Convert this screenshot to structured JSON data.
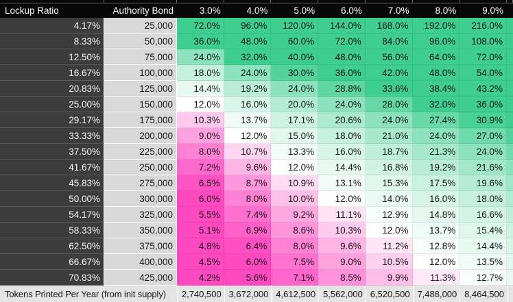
{
  "table": {
    "header": {
      "lockup": "Lockup Ratio",
      "bond": "Authority Bond",
      "rates": [
        "3.0%",
        "4.0%",
        "5.0%",
        "6.0%",
        "7.0%",
        "8.0%",
        "9.0%"
      ]
    },
    "rows": [
      {
        "lockup": "4.17%",
        "bond": "25,000",
        "values": [
          "72.0%",
          "96.0%",
          "120.0%",
          "144.0%",
          "168.0%",
          "192.0%",
          "216.0%"
        ]
      },
      {
        "lockup": "8.33%",
        "bond": "50,000",
        "values": [
          "36.0%",
          "48.0%",
          "60.0%",
          "72.0%",
          "84.0%",
          "96.0%",
          "108.0%"
        ]
      },
      {
        "lockup": "12.50%",
        "bond": "75,000",
        "values": [
          "24.0%",
          "32.0%",
          "40.0%",
          "48.0%",
          "56.0%",
          "64.0%",
          "72.0%"
        ]
      },
      {
        "lockup": "16.67%",
        "bond": "100,000",
        "values": [
          "18.0%",
          "24.0%",
          "30.0%",
          "36.0%",
          "42.0%",
          "48.0%",
          "54.0%"
        ]
      },
      {
        "lockup": "20.83%",
        "bond": "125,000",
        "values": [
          "14.4%",
          "19.2%",
          "24.0%",
          "28.8%",
          "33.6%",
          "38.4%",
          "43.2%"
        ]
      },
      {
        "lockup": "25.00%",
        "bond": "150,000",
        "values": [
          "12.0%",
          "16.0%",
          "20.0%",
          "24.0%",
          "28.0%",
          "32.0%",
          "36.0%"
        ]
      },
      {
        "lockup": "29.17%",
        "bond": "175,000",
        "values": [
          "10.3%",
          "13.7%",
          "17.1%",
          "20.6%",
          "24.0%",
          "27.4%",
          "30.9%"
        ]
      },
      {
        "lockup": "33.33%",
        "bond": "200,000",
        "values": [
          "9.0%",
          "12.0%",
          "15.0%",
          "18.0%",
          "21.0%",
          "24.0%",
          "27.0%"
        ]
      },
      {
        "lockup": "37.50%",
        "bond": "225,000",
        "values": [
          "8.0%",
          "10.7%",
          "13.3%",
          "16.0%",
          "18.7%",
          "21.3%",
          "24.0%"
        ]
      },
      {
        "lockup": "41.67%",
        "bond": "250,000",
        "values": [
          "7.2%",
          "9.6%",
          "12.0%",
          "14.4%",
          "16.8%",
          "19.2%",
          "21.6%"
        ]
      },
      {
        "lockup": "45.83%",
        "bond": "275,000",
        "values": [
          "6.5%",
          "8.7%",
          "10.9%",
          "13.1%",
          "15.3%",
          "17.5%",
          "19.6%"
        ]
      },
      {
        "lockup": "50.00%",
        "bond": "300,000",
        "values": [
          "6.0%",
          "8.0%",
          "10.0%",
          "12.0%",
          "14.0%",
          "16.0%",
          "18.0%"
        ]
      },
      {
        "lockup": "54.17%",
        "bond": "325,000",
        "values": [
          "5.5%",
          "7.4%",
          "9.2%",
          "11.1%",
          "12.9%",
          "14.8%",
          "16.6%"
        ]
      },
      {
        "lockup": "58.33%",
        "bond": "350,000",
        "values": [
          "5.1%",
          "6.9%",
          "8.6%",
          "10.3%",
          "12.0%",
          "13.7%",
          "15.4%"
        ]
      },
      {
        "lockup": "62.50%",
        "bond": "375,000",
        "values": [
          "4.8%",
          "6.4%",
          "8.0%",
          "9.6%",
          "11.2%",
          "12.8%",
          "14.4%"
        ]
      },
      {
        "lockup": "66.67%",
        "bond": "400,000",
        "values": [
          "4.5%",
          "6.0%",
          "7.5%",
          "9.0%",
          "10.5%",
          "12.0%",
          "13.5%"
        ]
      },
      {
        "lockup": "70.83%",
        "bond": "425,000",
        "values": [
          "4.2%",
          "5.6%",
          "7.1%",
          "8.5%",
          "9.9%",
          "11.3%",
          "12.7%"
        ]
      }
    ],
    "footer": {
      "label": "Tokens Printed Per Year (from init supply)",
      "values": [
        "2,740,500",
        "3,672,000",
        "4,612,500",
        "5,562,000",
        "6,520,500",
        "7,488,000",
        "8,464,500"
      ]
    }
  },
  "heatmap": {
    "mid_value": 12,
    "green_full_value": 32,
    "pink_full_value": 6.2,
    "green": "#3ECE90",
    "pink": "#FF49C1",
    "white": "#FFFFFF",
    "cropped_next_rate_pct": 10.0
  },
  "colors": {
    "header_bg": "#070707",
    "lockup_col_bg": "#3C3C3C",
    "bond_col_bg": "#D9D9D9",
    "footer_bg": "#E4E4E4"
  }
}
